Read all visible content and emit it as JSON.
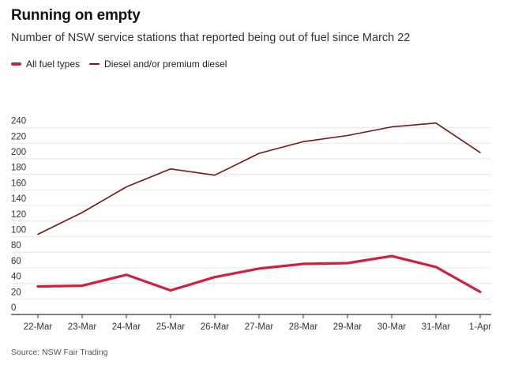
{
  "header": {
    "title": "Running on empty",
    "subtitle": "Number of NSW service stations that reported being out of fuel since March 22"
  },
  "source": "Source: NSW Fair Trading",
  "chart_data": {
    "type": "line",
    "title": "Running on empty",
    "subtitle": "Number of NSW service stations that reported being out of fuel since March 22",
    "xlabel": "",
    "ylabel": "",
    "categories": [
      "22-Mar",
      "23-Mar",
      "24-Mar",
      "25-Mar",
      "26-Mar",
      "27-Mar",
      "28-Mar",
      "29-Mar",
      "30-Mar",
      "31-Mar",
      "1-Apr"
    ],
    "yticks": [
      0,
      20,
      40,
      60,
      80,
      100,
      120,
      140,
      160,
      180,
      200,
      220,
      240
    ],
    "ylim": [
      0,
      250
    ],
    "grid": true,
    "legend_position": "top-left",
    "series": [
      {
        "name": "All fuel types",
        "color": "#d41f3a",
        "values": [
          36,
          37,
          51,
          31,
          48,
          59,
          65,
          66,
          75,
          61,
          29
        ]
      },
      {
        "name": "Diesel and/or premium diesel",
        "color": "#7a1416",
        "values": [
          103,
          131,
          164,
          187,
          179,
          207,
          222,
          230,
          241,
          246,
          208
        ]
      }
    ],
    "source": "Source: NSW Fair Trading"
  }
}
